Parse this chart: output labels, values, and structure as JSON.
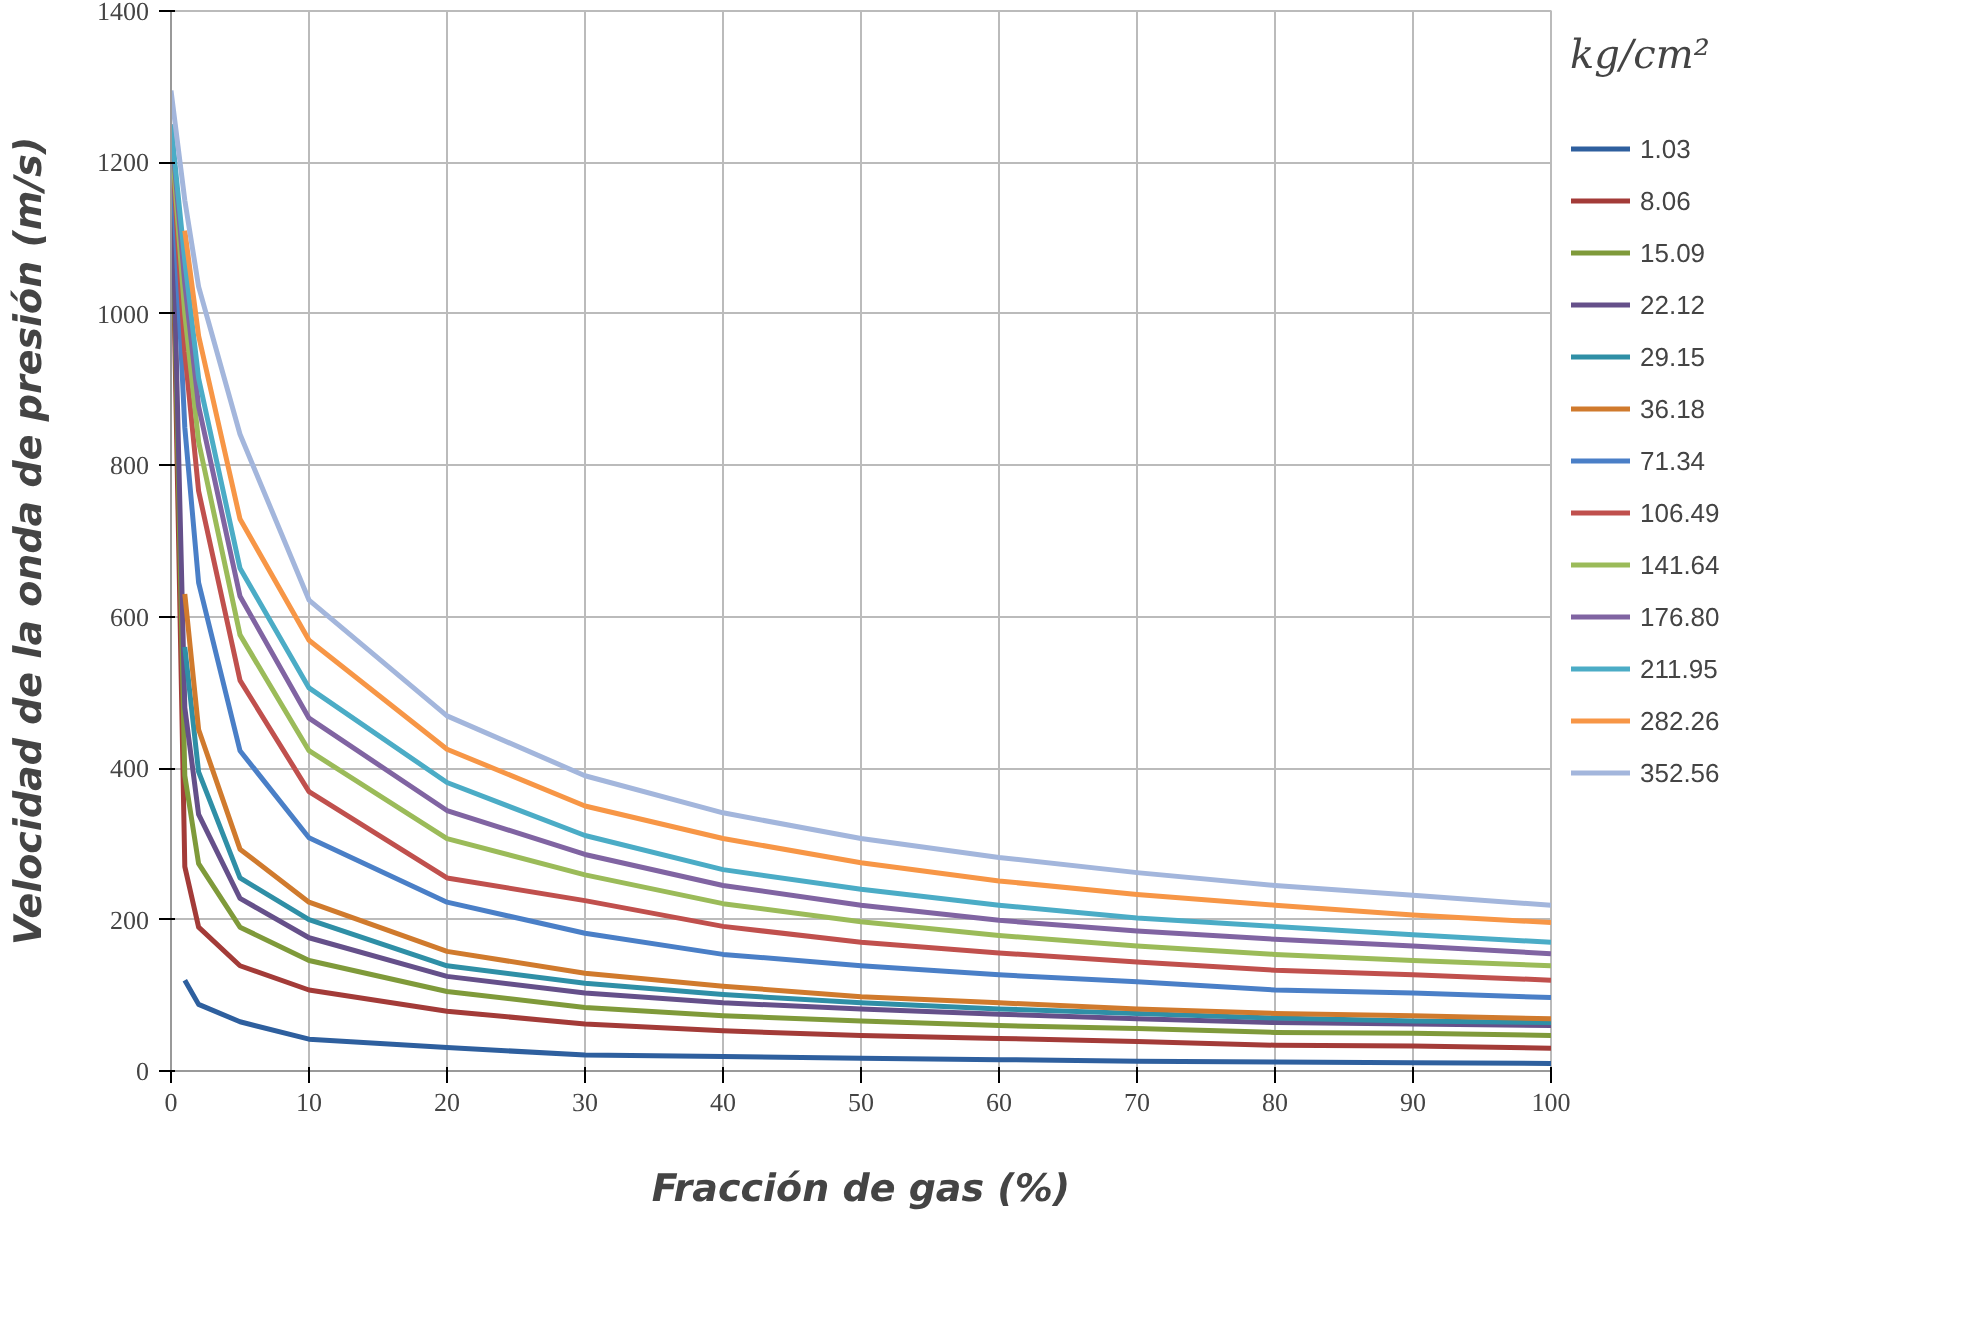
{
  "chart_data": {
    "type": "line",
    "xlabel": "Fracción de gas (%)",
    "ylabel": "Velocidad de la onda de presión (m/s)",
    "legend_title": "kg/cm²",
    "x": [
      0,
      1,
      2,
      5,
      10,
      20,
      30,
      40,
      50,
      60,
      70,
      80,
      90,
      100
    ],
    "xlim": [
      0,
      100
    ],
    "xticks": [
      0,
      10,
      20,
      30,
      40,
      50,
      60,
      70,
      80,
      90,
      100
    ],
    "ylim": [
      0,
      1400
    ],
    "yticks": [
      0,
      200,
      400,
      600,
      800,
      1000,
      1200,
      1400
    ],
    "grid": true,
    "legend": "right",
    "marker": "none",
    "line_style": "solid",
    "series": [
      {
        "name": "1.03",
        "color": "#2e5f9e",
        "values": [
          null,
          120,
          88,
          65,
          42,
          31,
          21,
          19,
          17,
          15,
          13,
          12,
          11,
          10
        ]
      },
      {
        "name": "8.06",
        "color": "#a33b38",
        "values": [
          1230,
          270,
          190,
          139,
          107,
          79,
          62,
          53,
          47,
          43,
          39,
          34,
          33,
          30
        ]
      },
      {
        "name": "15.09",
        "color": "#7f9a3a",
        "values": [
          1230,
          390,
          274,
          190,
          146,
          105,
          84,
          73,
          66,
          60,
          56,
          51,
          50,
          47
        ]
      },
      {
        "name": "22.12",
        "color": "#65508a",
        "values": [
          1230,
          480,
          339,
          228,
          176,
          125,
          103,
          90,
          82,
          75,
          69,
          64,
          62,
          60
        ]
      },
      {
        "name": "29.15",
        "color": "#2f8fa6",
        "values": [
          null,
          560,
          395,
          255,
          200,
          139,
          116,
          101,
          90,
          82,
          76,
          70,
          66,
          64
        ]
      },
      {
        "name": "36.18",
        "color": "#d07a2d",
        "values": [
          null,
          630,
          451,
          293,
          223,
          158,
          129,
          112,
          98,
          90,
          82,
          76,
          73,
          69
        ]
      },
      {
        "name": "71.34",
        "color": "#4a7fc7",
        "values": [
          1230,
          850,
          645,
          423,
          308,
          223,
          182,
          154,
          139,
          127,
          118,
          107,
          103,
          97
        ]
      },
      {
        "name": "106.49",
        "color": "#c0504d",
        "values": [
          1240,
          950,
          766,
          516,
          369,
          255,
          225,
          191,
          170,
          156,
          144,
          133,
          127,
          120
        ]
      },
      {
        "name": "141.64",
        "color": "#9bbb59",
        "values": [
          1240,
          1000,
          831,
          576,
          423,
          307,
          259,
          221,
          197,
          179,
          165,
          154,
          146,
          139
        ]
      },
      {
        "name": "176.80",
        "color": "#8064a2",
        "values": [
          1250,
          1040,
          878,
          627,
          466,
          344,
          286,
          245,
          219,
          199,
          185,
          174,
          165,
          155
        ]
      },
      {
        "name": "211.95",
        "color": "#4bacc6",
        "values": [
          1250,
          1070,
          915,
          664,
          506,
          381,
          311,
          266,
          240,
          219,
          202,
          191,
          180,
          170
        ]
      },
      {
        "name": "282.26",
        "color": "#f79646",
        "values": [
          null,
          1110,
          971,
          729,
          569,
          425,
          350,
          307,
          275,
          251,
          233,
          219,
          206,
          196
        ]
      },
      {
        "name": "352.56",
        "color": "#a3b6dc",
        "values": [
          1295,
          1150,
          1036,
          841,
          622,
          469,
          390,
          341,
          307,
          282,
          262,
          245,
          232,
          219
        ]
      }
    ]
  }
}
